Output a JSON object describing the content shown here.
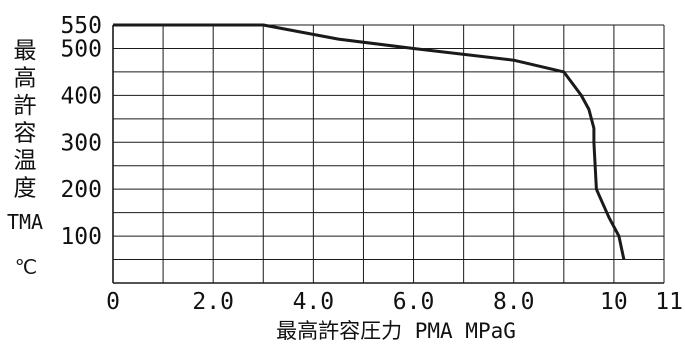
{
  "chart_data": {
    "type": "line",
    "title": "",
    "xlabel": "最高許容圧力 PMA  MPaG",
    "ylabel_vertical": "最高許容温度",
    "ylabel_line2": "TMA",
    "ylabel_line3": "℃",
    "xlim": [
      0,
      11
    ],
    "ylim": [
      0,
      550
    ],
    "x_ticks": [
      {
        "value": 0,
        "label": "0"
      },
      {
        "value": 2,
        "label": "2.0"
      },
      {
        "value": 4,
        "label": "4.0"
      },
      {
        "value": 6,
        "label": "6.0"
      },
      {
        "value": 8,
        "label": "8.0"
      },
      {
        "value": 10,
        "label": "10"
      },
      {
        "value": 11,
        "label": "11"
      }
    ],
    "y_ticks": [
      {
        "value": 100,
        "label": "100"
      },
      {
        "value": 200,
        "label": "200"
      },
      {
        "value": 300,
        "label": "300"
      },
      {
        "value": 400,
        "label": "400"
      },
      {
        "value": 500,
        "label": "500"
      },
      {
        "value": 550,
        "label": "550"
      }
    ],
    "x_grid": [
      0,
      1,
      2,
      3,
      4,
      5,
      6,
      7,
      8,
      9,
      10,
      11
    ],
    "y_grid": [
      0,
      50,
      100,
      150,
      200,
      250,
      300,
      350,
      400,
      450,
      500,
      550
    ],
    "grid": true,
    "series": [
      {
        "x": [
          0,
          3.0,
          4.5,
          6.0,
          8.0,
          9.0,
          9.35,
          9.5,
          9.6,
          9.6,
          9.65,
          9.9,
          10.1,
          10.2
        ],
        "y": [
          550,
          550,
          520,
          500,
          475,
          450,
          400,
          370,
          330,
          300,
          200,
          140,
          100,
          50
        ]
      }
    ]
  }
}
